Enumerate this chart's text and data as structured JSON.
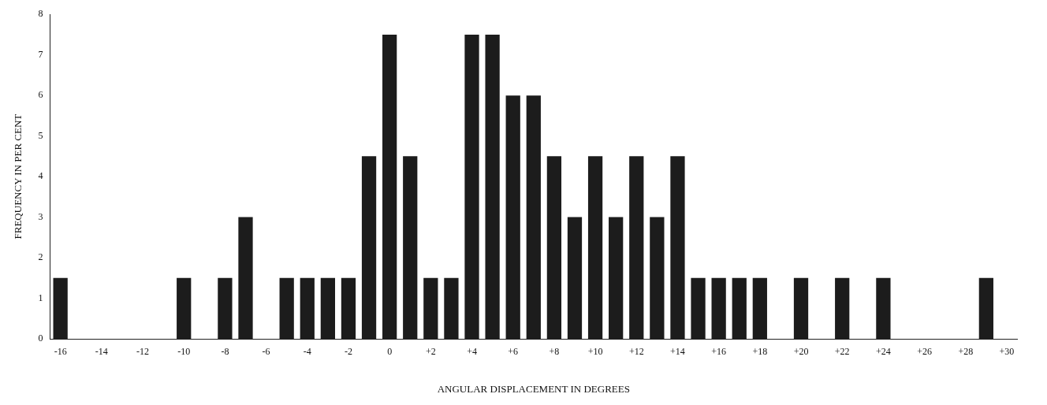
{
  "chart_data": {
    "type": "bar",
    "xlabel": "ANGULAR DISPLACEMENT IN DEGREES",
    "ylabel": "FREQUENCY IN PER CENT",
    "categories": [
      "-16",
      null,
      "-14",
      null,
      "-12",
      null,
      "-10",
      null,
      "-8",
      null,
      "-6",
      null,
      "-4",
      null,
      "-2",
      null,
      "0",
      null,
      "+2",
      null,
      "+4",
      null,
      "+6",
      null,
      "+8",
      null,
      "+10",
      null,
      "+12",
      null,
      "+14",
      null,
      "+16",
      null,
      "+18",
      null,
      "+20",
      null,
      "+22",
      null,
      "+24",
      null,
      "+26",
      null,
      "+28",
      null,
      "+30"
    ],
    "values": [
      1.5,
      0,
      0,
      0,
      0,
      0,
      1.5,
      0,
      1.5,
      3,
      0,
      1.5,
      1.5,
      1.5,
      1.5,
      4.5,
      7.5,
      4.5,
      1.5,
      1.5,
      7.5,
      7.5,
      6,
      6,
      4.5,
      3,
      4.5,
      3,
      4.5,
      3,
      4.5,
      1.5,
      1.5,
      1.5,
      1.5,
      0,
      1.5,
      0,
      1.5,
      0,
      1.5,
      0,
      0,
      0,
      0,
      1.5,
      0
    ],
    "color": "#1c1c1c",
    "ylim": [
      0,
      8
    ],
    "yticks": [
      0,
      1,
      2,
      3,
      4,
      5,
      6,
      7,
      8
    ],
    "grid": false,
    "legend": false
  }
}
